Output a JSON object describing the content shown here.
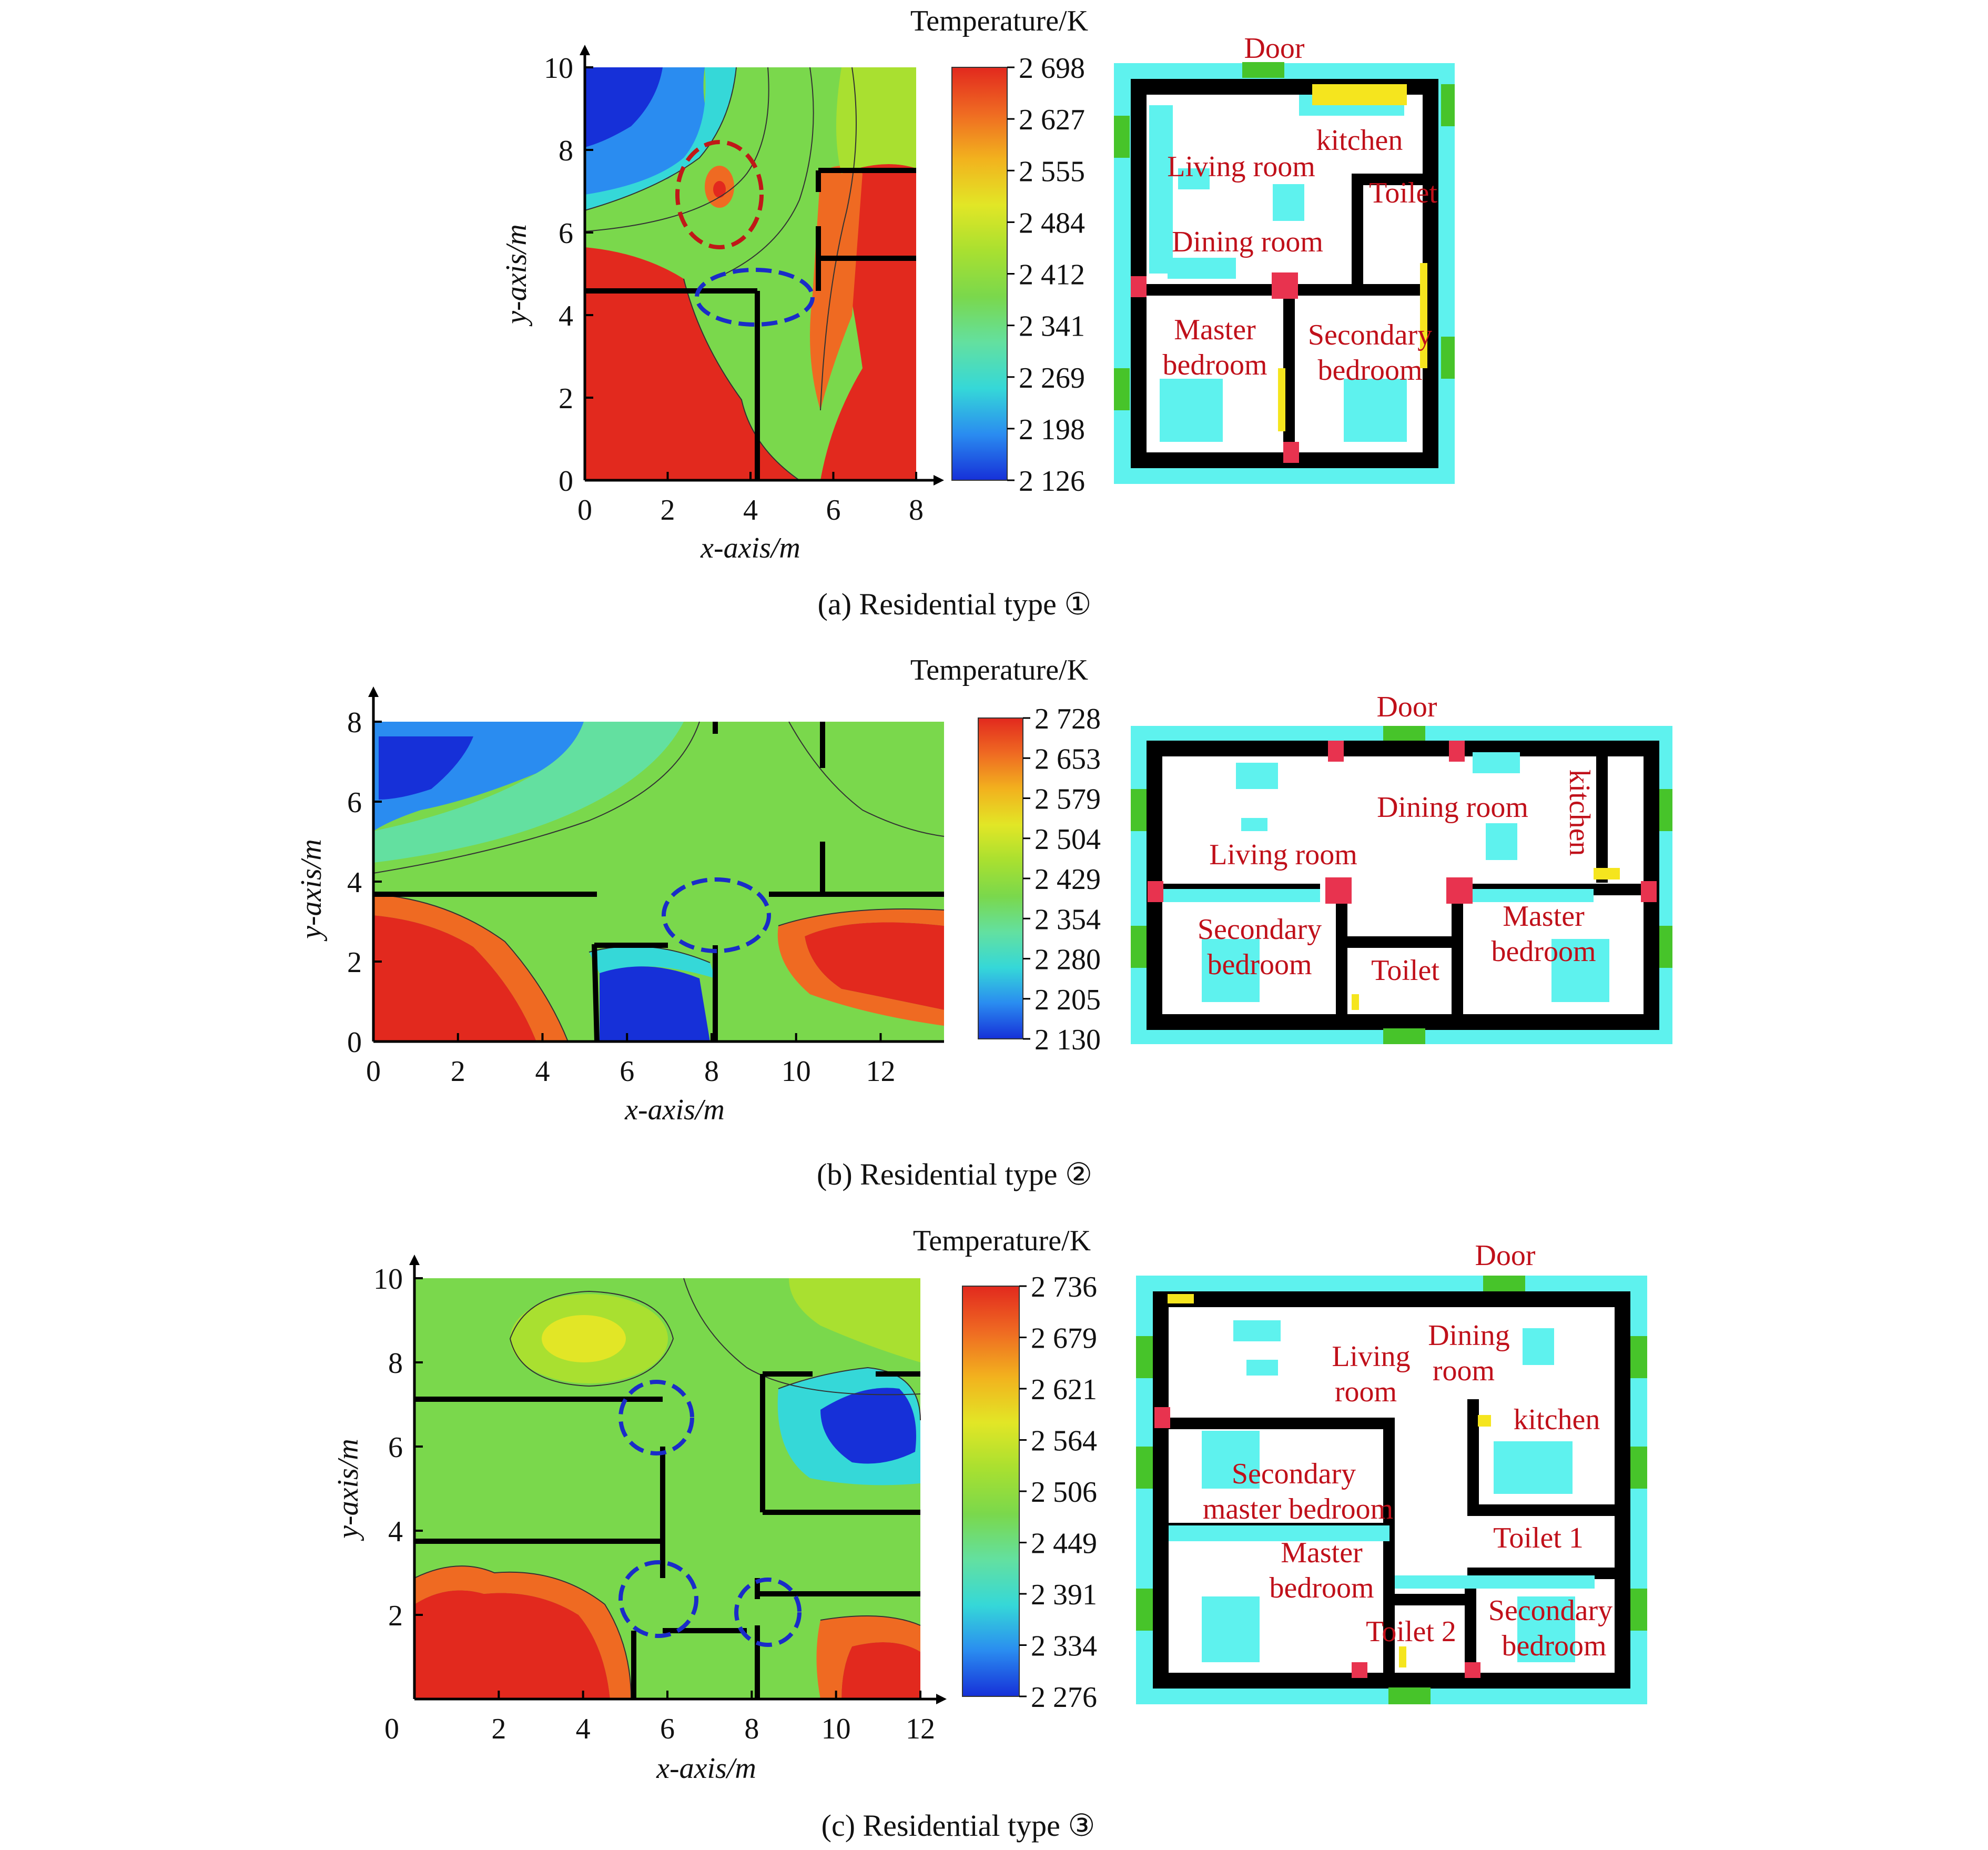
{
  "colors": {
    "scale": [
      "#1630d8",
      "#2a8cf0",
      "#35d8d8",
      "#63e0a0",
      "#7ad84c",
      "#a9e030",
      "#e2e626",
      "#f2b21e",
      "#ef6a22",
      "#e2291e"
    ],
    "wall": "#000000",
    "plan_wall_outline": "#5ef2ee",
    "plan_furniture": "#5ef2ee",
    "plan_window": "#47c42a",
    "plan_door": "#e8334f",
    "plan_yellow": "#f5e51e",
    "plan_label": "#c0101a",
    "circle_red": "#c01818",
    "circle_blue": "#1a2cc8"
  },
  "chart_data": [
    {
      "id": "a",
      "type": "heatmap",
      "caption": "(a) Residential type ①",
      "colorbar_title": "Temperature/K",
      "colorbar_ticks": [
        "2 698",
        "2 627",
        "2 555",
        "2 484",
        "2 412",
        "2 341",
        "2 269",
        "2 198",
        "2 126"
      ],
      "xlabel": "x-axis/m",
      "ylabel": "y-axis/m",
      "xticks": [
        "0",
        "2",
        "4",
        "6",
        "8"
      ],
      "yticks": [
        "0",
        "2",
        "4",
        "6",
        "8",
        "10"
      ],
      "xlim": [
        0,
        8
      ],
      "ylim": [
        0,
        10
      ],
      "floor_plan_labels": [
        "Door",
        "kitchen",
        "Living room",
        "Toilet",
        "Dining room",
        "Master",
        "bedroom",
        "Secondary",
        "bedroom"
      ]
    },
    {
      "id": "b",
      "type": "heatmap",
      "caption": "(b) Residential type ②",
      "colorbar_title": "Temperature/K",
      "colorbar_ticks": [
        "2 728",
        "2 653",
        "2 579",
        "2 504",
        "2 429",
        "2 354",
        "2 280",
        "2 205",
        "2 130"
      ],
      "xlabel": "x-axis/m",
      "ylabel": "y-axis/m",
      "xticks": [
        "0",
        "2",
        "4",
        "6",
        "8",
        "10",
        "12"
      ],
      "yticks": [
        "0",
        "2",
        "4",
        "6",
        "8"
      ],
      "xlim": [
        0,
        13.5
      ],
      "ylim": [
        0,
        8
      ],
      "floor_plan_labels": [
        "Door",
        "Dining room",
        "kitchen",
        "Living room",
        "Secondary",
        "bedroom",
        "Toilet",
        "Master",
        "bedroom"
      ]
    },
    {
      "id": "c",
      "type": "heatmap",
      "caption": "(c) Residential type ③",
      "colorbar_title": "Temperature/K",
      "colorbar_ticks": [
        "2 736",
        "2 679",
        "2 621",
        "2 564",
        "2 506",
        "2 449",
        "2 391",
        "2 334",
        "2 276"
      ],
      "xlabel": "x-axis/m",
      "ylabel": "y-axis/m",
      "xticks": [
        "0",
        "2",
        "4",
        "6",
        "8",
        "10",
        "12"
      ],
      "yticks": [
        "2",
        "4",
        "6",
        "8",
        "10"
      ],
      "xlim": [
        0,
        12
      ],
      "ylim": [
        0,
        10
      ],
      "floor_plan_labels": [
        "Door",
        "Dining",
        "room",
        "Living",
        "room",
        "kitchen",
        "Secondary",
        "master bedroom",
        "Toilet 1",
        "Master",
        "bedroom",
        "Secondary",
        "bedroom",
        "Toilet 2"
      ]
    }
  ]
}
